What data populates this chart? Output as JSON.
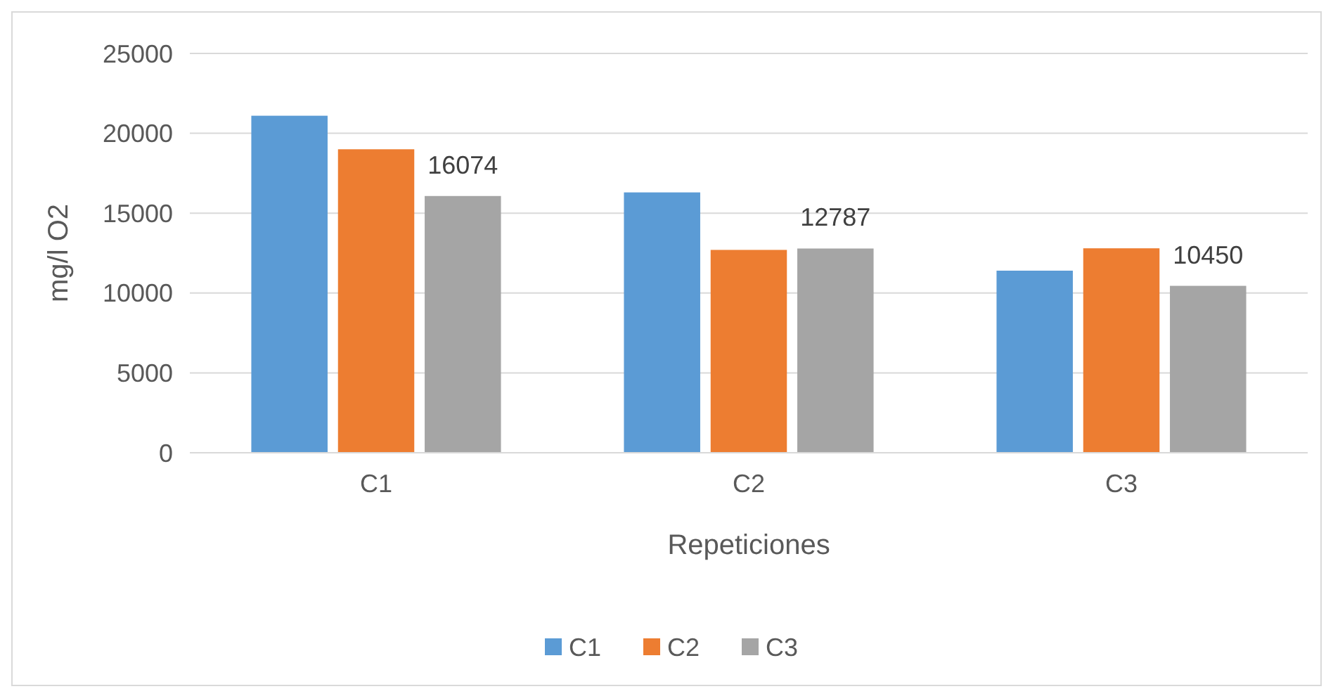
{
  "chart_data": {
    "type": "bar",
    "xlabel": "Repeticiones",
    "ylabel": "mg/l O2",
    "categories": [
      "C1",
      "C2",
      "C3"
    ],
    "series": [
      {
        "name": "C1",
        "color": "#5b9bd5",
        "values": [
          21100,
          16300,
          11400
        ]
      },
      {
        "name": "C2",
        "color": "#ed7d31",
        "values": [
          19000,
          12700,
          12800
        ]
      },
      {
        "name": "C3",
        "color": "#a5a5a5",
        "values": [
          16074,
          12787,
          10450
        ],
        "value_labels": [
          "16074",
          "12787",
          "10450"
        ]
      }
    ],
    "ylim": [
      0,
      25000
    ],
    "yticks": [
      0,
      5000,
      10000,
      15000,
      20000,
      25000
    ],
    "grid": "y",
    "legend": "bottom"
  }
}
